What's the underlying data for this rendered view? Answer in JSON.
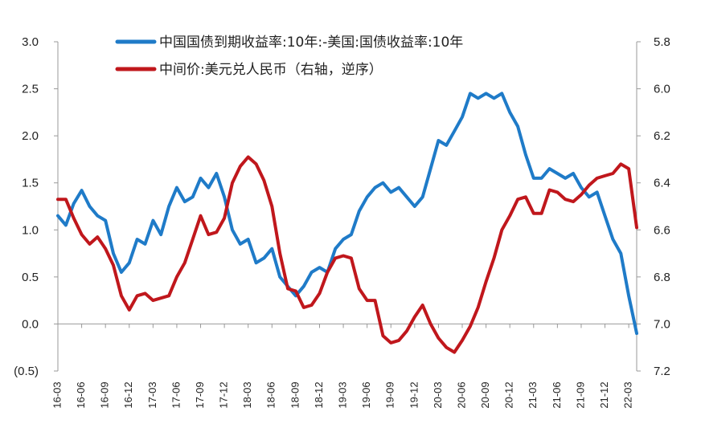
{
  "chart_data": {
    "type": "line",
    "title": "",
    "xlabel": "",
    "ylabel": "",
    "x_start": "16-03",
    "x_end": "22-04",
    "x_tick_labels": [
      "16-03",
      "16-06",
      "16-09",
      "16-12",
      "17-03",
      "17-06",
      "17-09",
      "17-12",
      "18-03",
      "18-06",
      "18-09",
      "18-12",
      "19-03",
      "19-06",
      "19-09",
      "19-12",
      "20-03",
      "20-06",
      "20-09",
      "20-12",
      "21-03",
      "21-06",
      "21-09",
      "21-12",
      "22-03"
    ],
    "y_left": {
      "min": -0.5,
      "max": 3.0,
      "ticks": [
        3.0,
        2.5,
        2.0,
        1.5,
        1.0,
        0.5,
        0.0,
        -0.5
      ],
      "tick_labels": [
        "3.0",
        "2.5",
        "2.0",
        "1.5",
        "1.0",
        "0.5",
        "0.0",
        "(0.5)"
      ],
      "negative_label_color": "#e0251b"
    },
    "y_right": {
      "min": 5.8,
      "max": 7.2,
      "inverted": true,
      "ticks": [
        5.8,
        6.0,
        6.2,
        6.4,
        6.6,
        6.8,
        7.0,
        7.2
      ],
      "tick_labels": [
        "5.8",
        "6.0",
        "6.2",
        "6.4",
        "6.6",
        "6.8",
        "7.0",
        "7.2"
      ]
    },
    "grid": false,
    "legend_position": "top",
    "series": [
      {
        "name": "中国国债到期收益率:10年:-美国:国债收益率:10年",
        "axis": "left",
        "color": "#1f7bc8",
        "points": [
          [
            "16-03",
            1.15
          ],
          [
            "16-04",
            1.05
          ],
          [
            "16-05",
            1.28
          ],
          [
            "16-06",
            1.42
          ],
          [
            "16-07",
            1.25
          ],
          [
            "16-08",
            1.15
          ],
          [
            "16-09",
            1.1
          ],
          [
            "16-10",
            0.75
          ],
          [
            "16-11",
            0.55
          ],
          [
            "16-12",
            0.65
          ],
          [
            "17-01",
            0.9
          ],
          [
            "17-02",
            0.85
          ],
          [
            "17-03",
            1.1
          ],
          [
            "17-04",
            0.95
          ],
          [
            "17-05",
            1.25
          ],
          [
            "17-06",
            1.45
          ],
          [
            "17-07",
            1.3
          ],
          [
            "17-08",
            1.35
          ],
          [
            "17-09",
            1.55
          ],
          [
            "17-10",
            1.45
          ],
          [
            "17-11",
            1.6
          ],
          [
            "17-12",
            1.35
          ],
          [
            "18-01",
            1.0
          ],
          [
            "18-02",
            0.85
          ],
          [
            "18-03",
            0.9
          ],
          [
            "18-04",
            0.65
          ],
          [
            "18-05",
            0.7
          ],
          [
            "18-06",
            0.8
          ],
          [
            "18-07",
            0.5
          ],
          [
            "18-08",
            0.4
          ],
          [
            "18-09",
            0.3
          ],
          [
            "18-10",
            0.4
          ],
          [
            "18-11",
            0.55
          ],
          [
            "18-12",
            0.6
          ],
          [
            "19-01",
            0.55
          ],
          [
            "19-02",
            0.8
          ],
          [
            "19-03",
            0.9
          ],
          [
            "19-04",
            0.95
          ],
          [
            "19-05",
            1.2
          ],
          [
            "19-06",
            1.35
          ],
          [
            "19-07",
            1.45
          ],
          [
            "19-08",
            1.5
          ],
          [
            "19-09",
            1.4
          ],
          [
            "19-10",
            1.45
          ],
          [
            "19-11",
            1.35
          ],
          [
            "19-12",
            1.25
          ],
          [
            "20-01",
            1.35
          ],
          [
            "20-02",
            1.65
          ],
          [
            "20-03",
            1.95
          ],
          [
            "20-04",
            1.9
          ],
          [
            "20-05",
            2.05
          ],
          [
            "20-06",
            2.2
          ],
          [
            "20-07",
            2.45
          ],
          [
            "20-08",
            2.4
          ],
          [
            "20-09",
            2.45
          ],
          [
            "20-10",
            2.4
          ],
          [
            "20-11",
            2.45
          ],
          [
            "20-12",
            2.25
          ],
          [
            "21-01",
            2.1
          ],
          [
            "21-02",
            1.8
          ],
          [
            "21-03",
            1.55
          ],
          [
            "21-04",
            1.55
          ],
          [
            "21-05",
            1.65
          ],
          [
            "21-06",
            1.6
          ],
          [
            "21-07",
            1.55
          ],
          [
            "21-08",
            1.6
          ],
          [
            "21-09",
            1.45
          ],
          [
            "21-10",
            1.35
          ],
          [
            "21-11",
            1.4
          ],
          [
            "21-12",
            1.15
          ],
          [
            "22-01",
            0.9
          ],
          [
            "22-02",
            0.75
          ],
          [
            "22-03",
            0.3
          ],
          [
            "22-04",
            -0.1
          ]
        ]
      },
      {
        "name": "中间价:美元兑人民币（右轴，逆序）",
        "axis": "right",
        "color": "#c0171c",
        "points": [
          [
            "16-03",
            6.47
          ],
          [
            "16-04",
            6.47
          ],
          [
            "16-05",
            6.55
          ],
          [
            "16-06",
            6.62
          ],
          [
            "16-07",
            6.66
          ],
          [
            "16-08",
            6.63
          ],
          [
            "16-09",
            6.68
          ],
          [
            "16-10",
            6.75
          ],
          [
            "16-11",
            6.88
          ],
          [
            "16-12",
            6.94
          ],
          [
            "17-01",
            6.88
          ],
          [
            "17-02",
            6.87
          ],
          [
            "17-03",
            6.9
          ],
          [
            "17-04",
            6.89
          ],
          [
            "17-05",
            6.88
          ],
          [
            "17-06",
            6.8
          ],
          [
            "17-07",
            6.74
          ],
          [
            "17-08",
            6.64
          ],
          [
            "17-09",
            6.54
          ],
          [
            "17-10",
            6.62
          ],
          [
            "17-11",
            6.61
          ],
          [
            "17-12",
            6.55
          ],
          [
            "18-01",
            6.4
          ],
          [
            "18-02",
            6.33
          ],
          [
            "18-03",
            6.29
          ],
          [
            "18-04",
            6.32
          ],
          [
            "18-05",
            6.39
          ],
          [
            "18-06",
            6.5
          ],
          [
            "18-07",
            6.7
          ],
          [
            "18-08",
            6.85
          ],
          [
            "18-09",
            6.86
          ],
          [
            "18-10",
            6.93
          ],
          [
            "18-11",
            6.92
          ],
          [
            "18-12",
            6.87
          ],
          [
            "19-01",
            6.78
          ],
          [
            "19-02",
            6.72
          ],
          [
            "19-03",
            6.71
          ],
          [
            "19-04",
            6.72
          ],
          [
            "19-05",
            6.85
          ],
          [
            "19-06",
            6.9
          ],
          [
            "19-07",
            6.9
          ],
          [
            "19-08",
            7.05
          ],
          [
            "19-09",
            7.08
          ],
          [
            "19-10",
            7.07
          ],
          [
            "19-11",
            7.03
          ],
          [
            "19-12",
            6.97
          ],
          [
            "20-01",
            6.92
          ],
          [
            "20-02",
            7.0
          ],
          [
            "20-03",
            7.06
          ],
          [
            "20-04",
            7.1
          ],
          [
            "20-05",
            7.12
          ],
          [
            "20-06",
            7.07
          ],
          [
            "20-07",
            7.01
          ],
          [
            "20-08",
            6.93
          ],
          [
            "20-09",
            6.82
          ],
          [
            "20-10",
            6.72
          ],
          [
            "20-11",
            6.6
          ],
          [
            "20-12",
            6.54
          ],
          [
            "21-01",
            6.47
          ],
          [
            "21-02",
            6.46
          ],
          [
            "21-03",
            6.53
          ],
          [
            "21-04",
            6.53
          ],
          [
            "21-05",
            6.43
          ],
          [
            "21-06",
            6.44
          ],
          [
            "21-07",
            6.47
          ],
          [
            "21-08",
            6.48
          ],
          [
            "21-09",
            6.45
          ],
          [
            "21-10",
            6.41
          ],
          [
            "21-11",
            6.38
          ],
          [
            "21-12",
            6.37
          ],
          [
            "22-01",
            6.36
          ],
          [
            "22-02",
            6.32
          ],
          [
            "22-03",
            6.34
          ],
          [
            "22-04",
            6.59
          ]
        ]
      }
    ]
  }
}
